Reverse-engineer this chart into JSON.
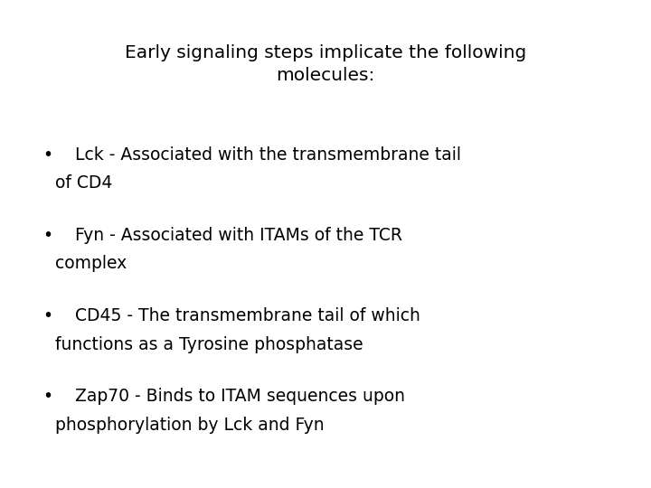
{
  "title_line1": "Early signaling steps implicate the following",
  "title_line2": "molecules:",
  "bullet_points": [
    {
      "bullet_line1": "Lck - Associated with the transmembrane tail",
      "bullet_line2": "of CD4"
    },
    {
      "bullet_line1": "Fyn - Associated with ITAMs of the TCR",
      "bullet_line2": "complex"
    },
    {
      "bullet_line1": "CD45 - The transmembrane tail of which",
      "bullet_line2": "functions as a Tyrosine phosphatase"
    },
    {
      "bullet_line1": "Zap70 - Binds to ITAM sequences upon",
      "bullet_line2": "phosphorylation by Lck and Fyn"
    }
  ],
  "background_color": "#ffffff",
  "text_color": "#000000",
  "title_fontsize": 14.5,
  "body_fontsize": 13.5,
  "bullet_char": "•",
  "figwidth": 7.2,
  "figheight": 5.4,
  "dpi": 100
}
